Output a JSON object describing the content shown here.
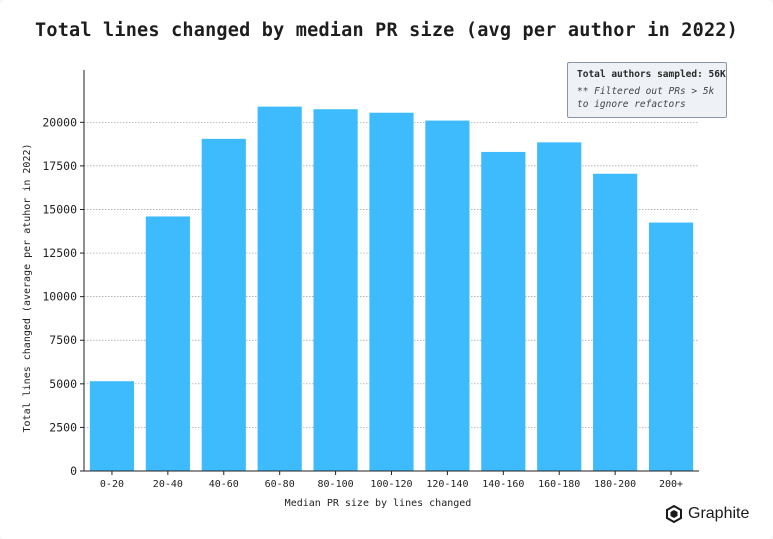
{
  "chart_data": {
    "type": "bar",
    "title": "Total lines changed by median PR size (avg per author in 2022)",
    "xlabel": "Median PR size by lines changed",
    "ylabel": "Total lines changed (average per atuhor in 2022)",
    "categories": [
      "0-20",
      "20-40",
      "40-60",
      "60-80",
      "80-100",
      "100-120",
      "120-140",
      "140-160",
      "160-180",
      "180-200",
      "200+"
    ],
    "values": [
      5150,
      14600,
      19050,
      20900,
      20750,
      20550,
      20100,
      18300,
      18850,
      17050,
      14250
    ],
    "ylim": [
      0,
      23000
    ],
    "yticks": [
      0,
      2500,
      5000,
      7500,
      10000,
      12500,
      15000,
      17500,
      20000
    ],
    "grid": true,
    "bar_color": "#3dbbfd",
    "annotation": {
      "line1": "Total authors sampled: 56K",
      "line2": "** Filtered out PRs > 5k",
      "line3": "to ignore refactors",
      "placement": "top-right"
    }
  },
  "brand": {
    "name": "Graphite",
    "icon": "graphite-logo-icon"
  }
}
